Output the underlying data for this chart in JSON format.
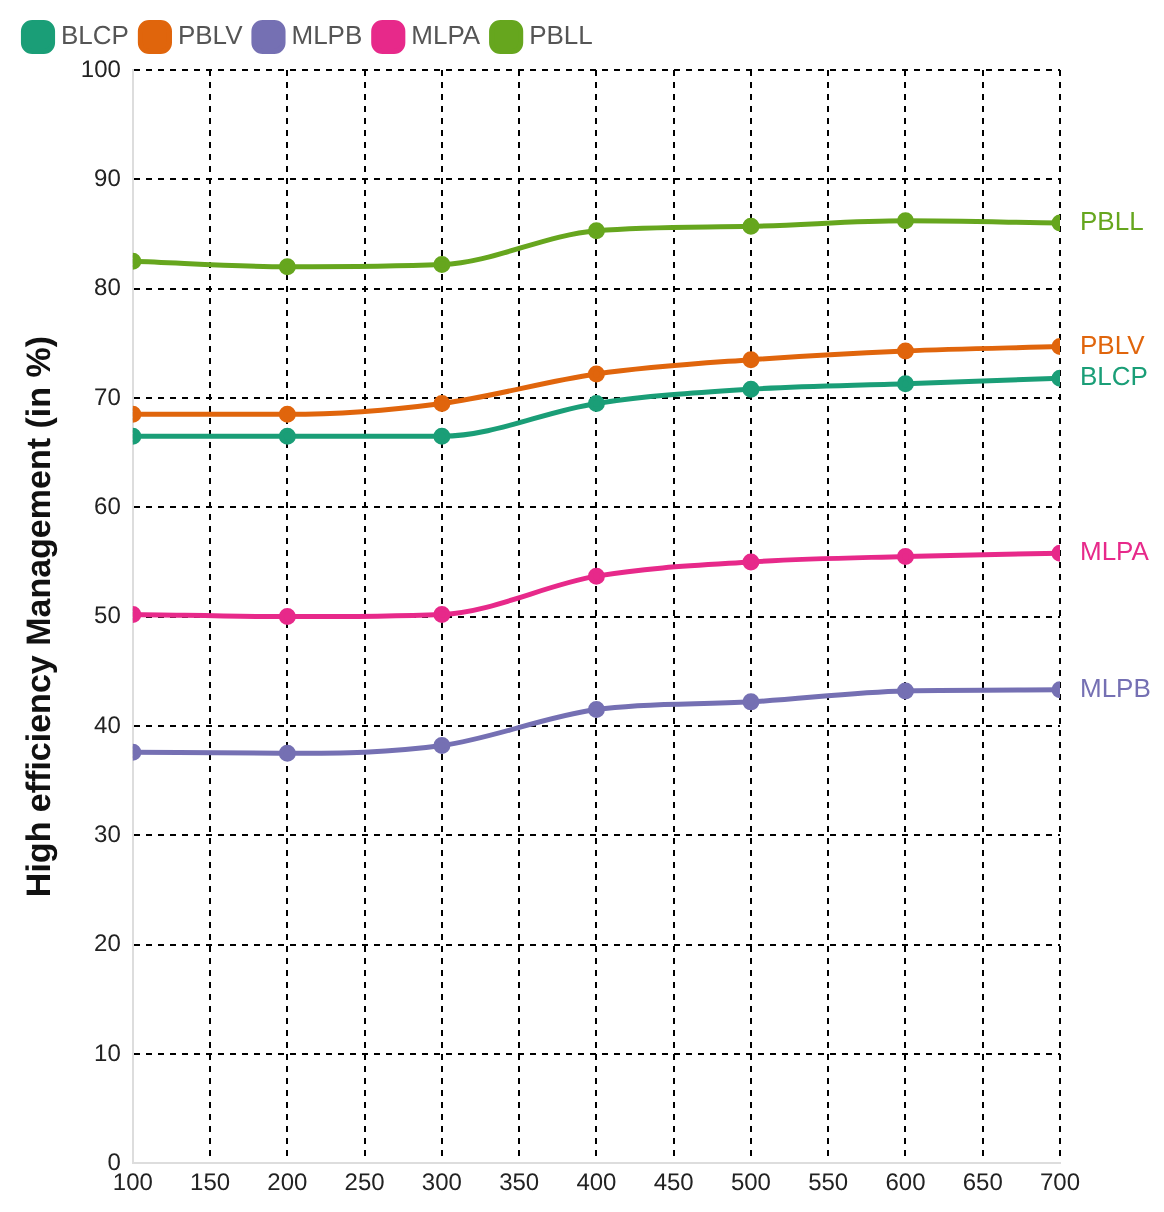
{
  "chart_data": {
    "type": "line",
    "ylabel": "High efficiency Management (in %)",
    "x": [
      100,
      200,
      300,
      400,
      500,
      600,
      700
    ],
    "series": [
      {
        "name": "BLCP",
        "color": "#1a9e77",
        "values": [
          66.5,
          66.5,
          66.5,
          69.5,
          70.8,
          71.3,
          71.8
        ]
      },
      {
        "name": "PBLV",
        "color": "#e0650c",
        "values": [
          68.5,
          68.5,
          69.5,
          72.2,
          73.5,
          74.3,
          74.7
        ]
      },
      {
        "name": "MLPB",
        "color": "#7570b3",
        "values": [
          37.6,
          37.5,
          38.2,
          41.5,
          42.2,
          43.2,
          43.3
        ]
      },
      {
        "name": "MLPA",
        "color": "#e7298a",
        "values": [
          50.2,
          50,
          50.2,
          53.7,
          55,
          55.5,
          55.8
        ]
      },
      {
        "name": "PBLL",
        "color": "#66a61e",
        "values": [
          82.5,
          82,
          82.2,
          85.3,
          85.7,
          86.2,
          86
        ]
      }
    ],
    "xlim": [
      100,
      700
    ],
    "xticks": [
      100,
      150,
      200,
      250,
      300,
      350,
      400,
      450,
      500,
      550,
      600,
      650,
      700
    ],
    "ylim": [
      0,
      100
    ],
    "yticks": [
      0,
      10,
      20,
      30,
      40,
      50,
      60,
      70,
      80,
      90,
      100
    ],
    "grid": true,
    "legend": "top left",
    "marker": "circle",
    "line_style": "solid"
  }
}
